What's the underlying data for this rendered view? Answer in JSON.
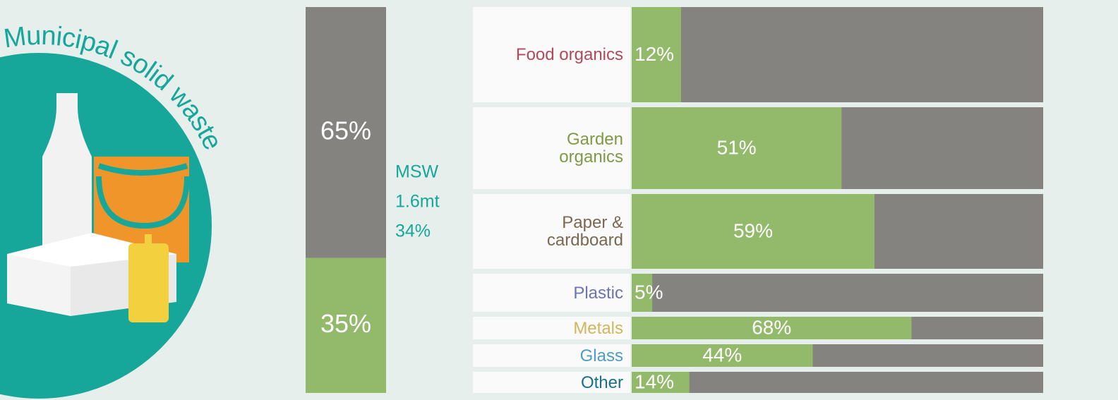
{
  "chart_data": [
    {
      "type": "stacked-column",
      "title": "Municipal solid waste",
      "values": [
        35,
        65
      ],
      "value_labels": [
        "35%",
        "65%"
      ],
      "colors": [
        "#93b96b",
        "#858380"
      ],
      "ylim": [
        0,
        100
      ],
      "annotation": [
        "MSW",
        "1.6mt",
        "34%"
      ]
    },
    {
      "type": "hbar",
      "categories": [
        "Food organics",
        "Garden organics",
        "Paper & cardboard",
        "Plastic",
        "Metals",
        "Glass",
        "Other"
      ],
      "category_colors": [
        "#b04a5a",
        "#7f9a44",
        "#7a6850",
        "#6c74b4",
        "#d2b65c",
        "#4d9dc2",
        "#17708c"
      ],
      "values": [
        12,
        51,
        59,
        5,
        68,
        44,
        14
      ],
      "value_labels": [
        "12%",
        "51%",
        "59%",
        "5%",
        "68%",
        "44%",
        "14%"
      ],
      "color": "#93b96b",
      "track_color": "#858380",
      "xlim": [
        0,
        100
      ]
    }
  ]
}
